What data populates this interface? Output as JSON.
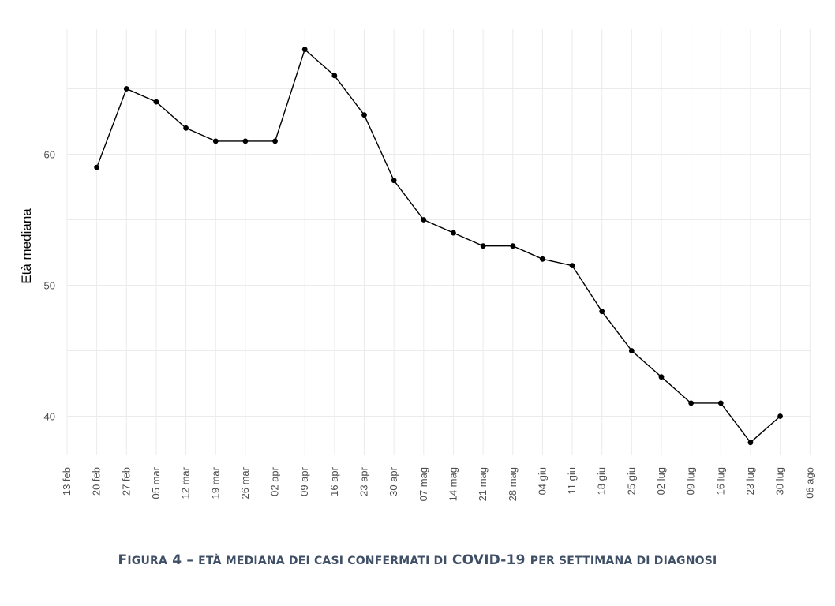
{
  "chart_data": {
    "type": "line",
    "ylabel": "Età mediana",
    "xlabel": "",
    "ylim": [
      36.5,
      70
    ],
    "y_ticks": [
      40,
      50,
      60
    ],
    "x_ticks": [
      "13 feb",
      "20 feb",
      "27 feb",
      "05 mar",
      "12 mar",
      "19 mar",
      "26 mar",
      "02 apr",
      "09 apr",
      "16 apr",
      "23 apr",
      "30 apr",
      "07 mag",
      "14 mag",
      "21 mag",
      "28 mag",
      "04 giu",
      "11 giu",
      "18 giu",
      "25 giu",
      "02 lug",
      "09 lug",
      "16 lug",
      "23 lug",
      "30 lug",
      "06 ago"
    ],
    "series": [
      {
        "x": [
          "20 feb",
          "27 feb",
          "05 mar",
          "12 mar",
          "19 mar",
          "26 mar",
          "02 apr",
          "09 apr",
          "16 apr",
          "23 apr",
          "30 apr",
          "07 mag",
          "14 mag",
          "21 mag",
          "28 mag",
          "04 giu",
          "11 giu",
          "18 giu",
          "25 giu",
          "02 lug",
          "09 lug",
          "16 lug",
          "23 lug",
          "30 lug"
        ],
        "values": [
          59,
          65,
          64,
          62,
          61,
          61,
          61,
          68,
          66,
          63,
          58,
          55,
          54,
          53,
          53,
          52,
          51.5,
          48,
          45,
          43,
          41,
          41,
          38,
          40
        ],
        "color": "#000000"
      }
    ],
    "grid": true,
    "legend": "none"
  },
  "caption": {
    "lead_letter": "F",
    "lead_rest": "IGURA",
    "number": "4 –",
    "text_1": "ETÀ MEDIANA DEI CASI CONFERMATI DI",
    "highlight": "COVID-19",
    "text_2": "PER SETTIMANA DI DIAGNOSI"
  }
}
